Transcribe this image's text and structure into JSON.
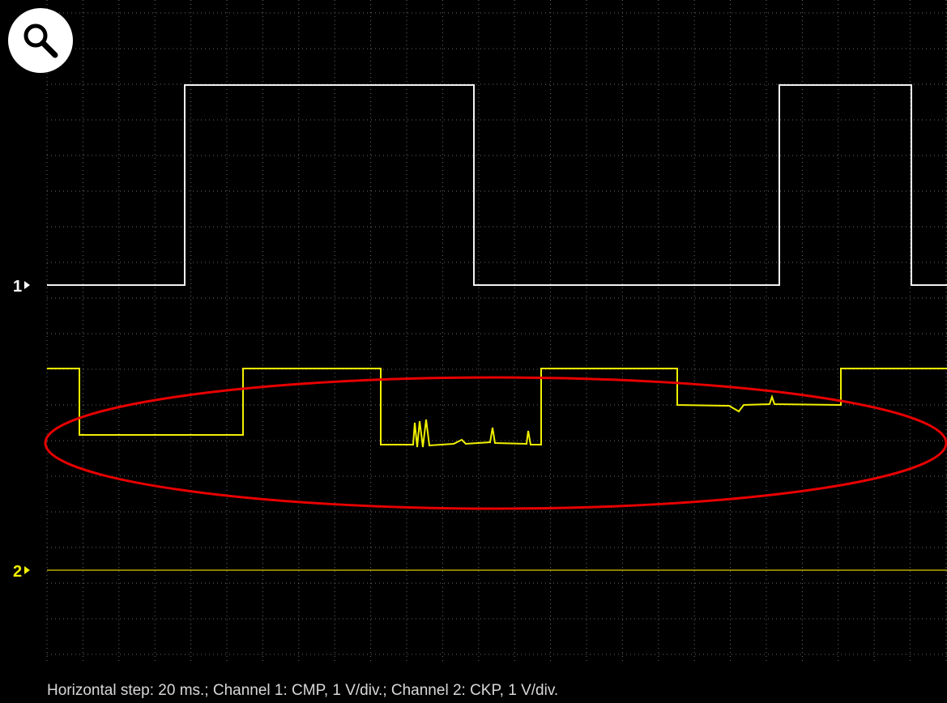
{
  "channel_markers": [
    "1",
    "2"
  ],
  "caption": "Horizontal step: 20 ms.; Channel 1: CMP, 1 V/div.; Channel 2: CKP, 1 V/div."
}
